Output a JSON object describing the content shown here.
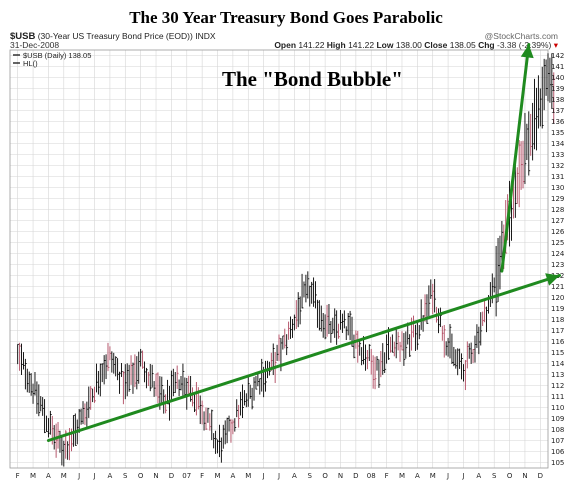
{
  "header": {
    "title": "The 30 Year Treasury Bond Goes Parabolic",
    "symbol": "$USB",
    "symbol_desc": "(30-Year US Treasury Bond Price (EOD))",
    "exchange": "INDX",
    "date": "31-Dec-2008",
    "source": "@StockCharts.com",
    "ohlc": {
      "open_label": "Open",
      "open": "141.22",
      "high_label": "High",
      "high": "141.22",
      "low_label": "Low",
      "low": "138.00",
      "close_label": "Close",
      "close": "138.05",
      "chg_label": "Chg",
      "chg": "-3.38 (-2.39%)"
    }
  },
  "legend": {
    "series": "$USB (Daily) 138.05",
    "indicator": "HL()"
  },
  "annotation": "The \"Bond Bubble\"",
  "colors": {
    "grid": "#d6d6d6",
    "bar": "#000000",
    "bar_accent": "#b0485f",
    "trend": "#1f8a1f"
  },
  "chart_data": {
    "type": "bar",
    "title": "The 30 Year Treasury Bond Goes Parabolic",
    "series_name": "$USB (Daily)",
    "last_close": 138.05,
    "xlabel": "",
    "ylabel": "",
    "ylim": [
      104.5,
      142.5
    ],
    "y_ticks": [
      105,
      106,
      107,
      108,
      109,
      110,
      111,
      112,
      113,
      114,
      115,
      116,
      117,
      118,
      119,
      120,
      121,
      122,
      123,
      124,
      125,
      126,
      127,
      128,
      129,
      130,
      131,
      132,
      133,
      134,
      135,
      136,
      137,
      138,
      139,
      140,
      141,
      142
    ],
    "x_ticks": [
      "F",
      "M",
      "A",
      "M",
      "J",
      "J",
      "A",
      "S",
      "O",
      "N",
      "D",
      "07",
      "F",
      "M",
      "A",
      "M",
      "J",
      "J",
      "A",
      "S",
      "O",
      "N",
      "D",
      "08",
      "F",
      "M",
      "A",
      "M",
      "J",
      "J",
      "A",
      "S",
      "O",
      "N",
      "D"
    ],
    "grid": true,
    "price_path": [
      [
        0,
        114.6
      ],
      [
        1,
        113.5
      ],
      [
        2,
        111.8
      ],
      [
        3,
        110.2
      ],
      [
        4,
        108.5
      ],
      [
        5,
        107.0
      ],
      [
        6,
        106.3
      ],
      [
        7,
        107.2
      ],
      [
        8,
        108.5
      ],
      [
        9,
        110.0
      ],
      [
        10,
        111.8
      ],
      [
        11,
        113.6
      ],
      [
        12,
        114.5
      ],
      [
        13,
        113.3
      ],
      [
        14,
        112.0
      ],
      [
        15,
        113.0
      ],
      [
        16,
        114.2
      ],
      [
        17,
        113.1
      ],
      [
        18,
        111.6
      ],
      [
        19,
        110.5
      ],
      [
        20,
        111.2
      ],
      [
        21,
        112.4
      ],
      [
        22,
        112.0
      ],
      [
        23,
        111.1
      ],
      [
        24,
        110.0
      ],
      [
        25,
        108.2
      ],
      [
        26,
        106.4
      ],
      [
        27,
        107.0
      ],
      [
        28,
        108.6
      ],
      [
        29,
        110.0
      ],
      [
        30,
        111.0
      ],
      [
        31,
        112.2
      ],
      [
        32,
        113.0
      ],
      [
        33,
        113.6
      ],
      [
        34,
        114.8
      ],
      [
        35,
        116.2
      ],
      [
        36,
        118.0
      ],
      [
        37,
        119.8
      ],
      [
        38,
        120.6
      ],
      [
        39,
        119.1
      ],
      [
        40,
        117.8
      ],
      [
        41,
        116.9
      ],
      [
        42,
        117.5
      ],
      [
        43,
        117.1
      ],
      [
        44,
        116.1
      ],
      [
        45,
        115.2
      ],
      [
        46,
        114.1
      ],
      [
        47,
        113.6
      ],
      [
        48,
        115.2
      ],
      [
        49,
        116.1
      ],
      [
        50,
        115.4
      ],
      [
        51,
        116.2
      ],
      [
        52,
        117.0
      ],
      [
        53,
        118.5
      ],
      [
        54,
        120.6
      ],
      [
        55,
        117.8
      ],
      [
        56,
        115.6
      ],
      [
        57,
        114.3
      ],
      [
        58,
        113.3
      ],
      [
        59,
        114.8
      ],
      [
        60,
        116.8
      ],
      [
        61,
        118.8
      ],
      [
        62,
        121.2
      ],
      [
        63,
        124.2
      ],
      [
        64,
        127.4
      ],
      [
        65,
        130.8
      ],
      [
        66,
        133.4
      ],
      [
        67,
        135.3
      ],
      [
        68,
        137.8
      ],
      [
        69,
        140.6
      ],
      [
        70,
        138.05
      ]
    ],
    "trendlines": [
      {
        "from": [
          4,
          107.0
        ],
        "to": [
          70.5,
          122.0
        ]
      },
      {
        "from": [
          63,
          122.4
        ],
        "to": [
          66.5,
          143.0
        ]
      }
    ]
  }
}
